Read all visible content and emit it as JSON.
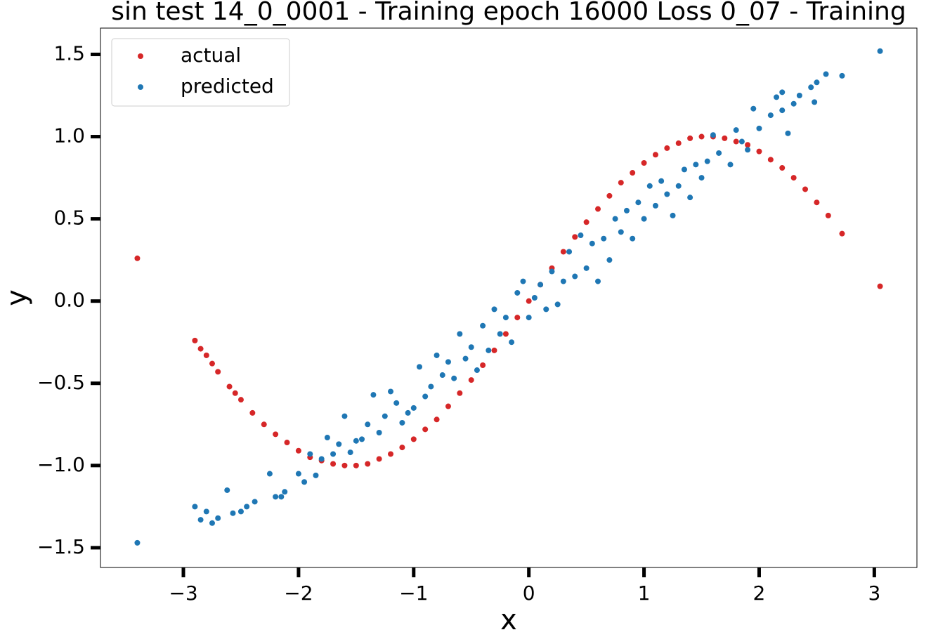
{
  "chart_data": {
    "type": "scatter",
    "title": "sin test 14_0_0001 - Training epoch 16000 Loss 0_07 - Training",
    "x_label": "x",
    "y_label": "y",
    "xlim": [
      -3.72,
      3.37
    ],
    "ylim": [
      -1.62,
      1.66
    ],
    "xticks": [
      {
        "value": -3,
        "label": "−3"
      },
      {
        "value": -2,
        "label": "−2"
      },
      {
        "value": -1,
        "label": "−1"
      },
      0,
      1,
      2,
      3
    ],
    "yticks": [
      {
        "value": -1.5,
        "label": "−1.5"
      },
      {
        "value": -1,
        "label": "−1.0"
      },
      {
        "value": -0.5,
        "label": "−0.5"
      },
      {
        "value": 0,
        "label": "0.0"
      },
      0.5,
      {
        "value": 1,
        "label": "1.0"
      },
      1.5
    ],
    "legend": "upper left",
    "series": [
      {
        "name": "actual",
        "color": "#d62728",
        "x": [
          -3.4,
          -2.9,
          -2.85,
          -2.8,
          -2.75,
          -2.7,
          -2.6,
          -2.55,
          -2.5,
          -2.4,
          -2.3,
          -2.2,
          -2.1,
          -2.0,
          -1.9,
          -1.8,
          -1.7,
          -1.6,
          -1.5,
          -1.4,
          -1.3,
          -1.2,
          -1.1,
          -1.0,
          -0.9,
          -0.8,
          -0.7,
          -0.6,
          -0.5,
          -0.4,
          -0.3,
          -0.2,
          -0.1,
          0,
          0.1,
          0.2,
          0.3,
          0.4,
          0.5,
          0.6,
          0.7,
          0.8,
          0.9,
          1.0,
          1.1,
          1.2,
          1.3,
          1.4,
          1.5,
          1.6,
          1.7,
          1.8,
          1.9,
          2.0,
          2.1,
          2.2,
          2.3,
          2.4,
          2.5,
          2.6,
          2.72,
          3.05
        ],
        "values": [
          0.26,
          -0.24,
          -0.29,
          -0.33,
          -0.38,
          -0.43,
          -0.52,
          -0.56,
          -0.6,
          -0.68,
          -0.75,
          -0.81,
          -0.86,
          -0.91,
          -0.95,
          -0.97,
          -0.99,
          -1.0,
          -1.0,
          -0.99,
          -0.96,
          -0.93,
          -0.89,
          -0.84,
          -0.78,
          -0.72,
          -0.64,
          -0.56,
          -0.48,
          -0.39,
          -0.3,
          -0.2,
          -0.1,
          0,
          0.1,
          0.2,
          0.3,
          0.39,
          0.48,
          0.56,
          0.64,
          0.72,
          0.78,
          0.84,
          0.89,
          0.93,
          0.96,
          0.99,
          1.0,
          1.0,
          0.99,
          0.97,
          0.95,
          0.91,
          0.86,
          0.81,
          0.75,
          0.68,
          0.6,
          0.52,
          0.41,
          0.09
        ]
      },
      {
        "name": "predicted",
        "color": "#1f77b4",
        "x": [
          -3.4,
          3.05,
          -2.9,
          -2.85,
          -2.8,
          -2.75,
          -2.7,
          -2.62,
          -2.57,
          -2.5,
          -2.45,
          -2.38,
          -2.25,
          -2.2,
          -2.15,
          -2.12,
          -2.0,
          -1.95,
          -1.9,
          -1.85,
          -1.8,
          -1.75,
          -1.7,
          -1.65,
          -1.6,
          -1.55,
          -1.5,
          -1.45,
          -1.4,
          -1.35,
          -1.3,
          -1.25,
          -1.2,
          -1.15,
          -1.1,
          -1.05,
          -1.0,
          -0.95,
          -0.9,
          -0.85,
          -0.8,
          -0.75,
          -0.7,
          -0.65,
          -0.6,
          -0.55,
          -0.5,
          -0.45,
          -0.4,
          -0.35,
          -0.3,
          -0.25,
          -0.2,
          -0.15,
          -0.1,
          -0.05,
          0,
          0.05,
          0.1,
          0.15,
          0.2,
          0.25,
          0.3,
          0.35,
          0.4,
          0.45,
          0.5,
          0.55,
          0.6,
          0.65,
          0.7,
          0.75,
          0.8,
          0.85,
          0.9,
          0.95,
          1.0,
          1.05,
          1.1,
          1.15,
          1.2,
          1.25,
          1.3,
          1.35,
          1.4,
          1.45,
          1.5,
          1.55,
          1.6,
          1.65,
          1.75,
          1.8,
          1.85,
          1.9,
          1.95,
          2.0,
          2.1,
          2.15,
          2.2,
          2.25,
          2.3,
          2.35,
          2.48,
          2.5,
          2.58,
          2.72,
          2.2,
          2.45
        ],
        "values": [
          -1.47,
          1.52,
          -1.25,
          -1.33,
          -1.28,
          -1.35,
          -1.32,
          -1.15,
          -1.29,
          -1.28,
          -1.25,
          -1.22,
          -1.05,
          -1.19,
          -1.19,
          -1.16,
          -1.05,
          -1.1,
          -0.93,
          -1.06,
          -0.96,
          -0.83,
          -0.93,
          -0.87,
          -0.7,
          -0.92,
          -0.85,
          -0.84,
          -0.75,
          -0.57,
          -0.8,
          -0.7,
          -0.55,
          -0.62,
          -0.74,
          -0.68,
          -0.65,
          -0.4,
          -0.58,
          -0.52,
          -0.33,
          -0.45,
          -0.37,
          -0.47,
          -0.2,
          -0.35,
          -0.28,
          -0.42,
          -0.15,
          -0.3,
          -0.05,
          -0.2,
          -0.1,
          -0.25,
          0.05,
          0.12,
          -0.1,
          0.02,
          0.1,
          -0.05,
          0.18,
          -0.02,
          0.12,
          0.3,
          0.15,
          0.4,
          0.2,
          0.35,
          0.12,
          0.38,
          0.25,
          0.5,
          0.42,
          0.55,
          0.38,
          0.6,
          0.5,
          0.7,
          0.58,
          0.73,
          0.65,
          0.52,
          0.7,
          0.8,
          0.63,
          0.83,
          0.75,
          0.85,
          1.01,
          0.9,
          0.83,
          1.04,
          0.97,
          0.92,
          1.17,
          1.05,
          1.13,
          1.24,
          1.16,
          1.02,
          1.2,
          1.25,
          1.21,
          1.33,
          1.38,
          1.37,
          1.27,
          1.3
        ]
      }
    ]
  }
}
